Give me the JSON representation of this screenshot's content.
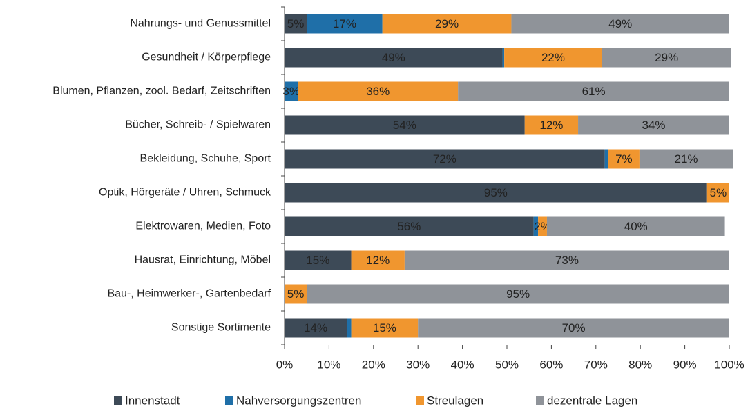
{
  "chart_data": {
    "type": "stacked_bar_horizontal",
    "categories": [
      "Nahrungs- und Genussmittel",
      "Gesundheit / Körperpflege",
      "Blumen, Pflanzen, zool. Bedarf, Zeitschriften",
      "Bücher, Schreib- / Spielwaren",
      "Bekleidung, Schuhe, Sport",
      "Optik, Hörgeräte / Uhren, Schmuck",
      "Elektrowaren, Medien, Foto",
      "Hausrat, Einrichtung, Möbel",
      "Bau-, Heimwerker-, Gartenbedarf",
      "Sonstige Sortimente"
    ],
    "series": [
      {
        "name": "Innenstadt",
        "color": "#3d4a57",
        "label_color": "#ffffff",
        "values": [
          5,
          49,
          0,
          54,
          72,
          95,
          56,
          15,
          0,
          14
        ],
        "value_labels": [
          "5%",
          "49%",
          null,
          "54%",
          "72%",
          "95%",
          "56%",
          "15%",
          null,
          "14%"
        ]
      },
      {
        "name": "Nahversorgungszentren",
        "color": "#1f6fa8",
        "label_color": "#ffffff",
        "values": [
          17,
          0.4,
          3,
          0,
          0.8,
          0,
          1,
          0,
          0,
          1
        ],
        "value_labels": [
          "17%",
          null,
          "3%",
          null,
          null,
          null,
          null,
          null,
          null,
          null
        ]
      },
      {
        "name": "Streulagen",
        "color": "#f0962f",
        "label_color": "#222222",
        "values": [
          29,
          22,
          36,
          12,
          7,
          5,
          2,
          12,
          5,
          15
        ],
        "value_labels": [
          "29%",
          "22%",
          "36%",
          "12%",
          "7%",
          "5%",
          "2%",
          "12%",
          "5%",
          "15%"
        ]
      },
      {
        "name": "dezentrale Lagen",
        "color": "#8f9399",
        "label_color": "#222222",
        "values": [
          49,
          29,
          61,
          34,
          21,
          0,
          40,
          73,
          95,
          70
        ],
        "value_labels": [
          "49%",
          "29%",
          "61%",
          "34%",
          "21%",
          null,
          "40%",
          "73%",
          "95%",
          "70%"
        ]
      }
    ],
    "xlim": [
      0,
      100
    ],
    "xticks": [
      {
        "value": 0,
        "label": "0%"
      },
      {
        "value": 10,
        "label": "10%"
      },
      {
        "value": 20,
        "label": "20%"
      },
      {
        "value": 30,
        "label": "30%"
      },
      {
        "value": 40,
        "label": "40%"
      },
      {
        "value": 50,
        "label": "50%"
      },
      {
        "value": 60,
        "label": "60%"
      },
      {
        "value": 70,
        "label": "70%"
      },
      {
        "value": 80,
        "label": "80%"
      },
      {
        "value": 90,
        "label": "90%"
      },
      {
        "value": 100,
        "label": "100%"
      }
    ],
    "legend": "bottom"
  }
}
